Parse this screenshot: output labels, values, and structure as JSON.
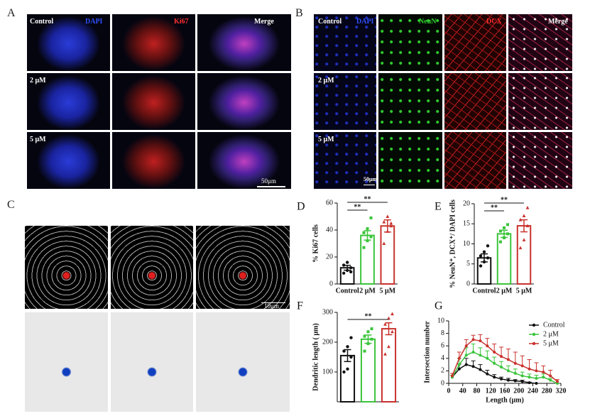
{
  "panel_labels": [
    "A",
    "B",
    "C"
  ],
  "figure_a": {
    "headers": [
      "Control",
      "DAPI",
      "Ki67",
      "Merge"
    ],
    "rows": [
      "2 μM",
      "5 μM"
    ],
    "scale_bar": "50μm"
  },
  "figure_b": {
    "headers": [
      "Control",
      "DAPI",
      "NeuN",
      "DCX",
      "Merge"
    ],
    "rows": [
      "2 μM",
      "5 μM"
    ],
    "scale_bar": "50μm"
  },
  "figure_c": {
    "scale_bar": "10μm"
  },
  "chart_data": [
    {
      "type": "bar",
      "panel": "D",
      "ylabel": "% Ki67 cells",
      "categories": [
        "Control",
        "2 μM",
        "5 μM"
      ],
      "values": [
        12,
        36,
        43
      ],
      "errors": [
        1.8,
        3.5,
        4.5
      ],
      "points": [
        [
          8,
          10,
          12,
          14,
          16,
          9
        ],
        [
          27,
          32,
          35,
          38,
          41,
          49
        ],
        [
          30,
          39,
          43,
          46,
          50,
          45
        ]
      ],
      "colors": [
        "#111111",
        "#3ac43a",
        "#c8322d"
      ],
      "ylim": [
        0,
        60
      ],
      "yticks": [
        0,
        20,
        40,
        60
      ],
      "significance": [
        "**",
        "**"
      ]
    },
    {
      "type": "bar",
      "panel": "E",
      "ylabel": "% NeuN⁺, DCX⁺/ DAPI cells",
      "categories": [
        "Control",
        "2 μM",
        "5 μM"
      ],
      "values": [
        6.5,
        12.5,
        14.5
      ],
      "errors": [
        1,
        0.9,
        1.5
      ],
      "points": [
        [
          4.5,
          5.5,
          6.5,
          7,
          8,
          9.5
        ],
        [
          10.5,
          11.5,
          12.5,
          13.2,
          14,
          14.8
        ],
        [
          9,
          11,
          14.5,
          16,
          17,
          19
        ]
      ],
      "colors": [
        "#111111",
        "#3ac43a",
        "#c8322d"
      ],
      "ylim": [
        0,
        20
      ],
      "yticks": [
        0,
        5,
        10,
        15,
        20
      ],
      "significance": [
        "**",
        "**"
      ]
    },
    {
      "type": "bar",
      "panel": "F",
      "ylabel": "Dendritic length ( μm)",
      "values": [
        155,
        210,
        245
      ],
      "errors": [
        20,
        14,
        20
      ],
      "points": [
        [
          100,
          110,
          150,
          170,
          185,
          215
        ],
        [
          170,
          195,
          210,
          220,
          235,
          245
        ],
        [
          160,
          185,
          235,
          260,
          280,
          295
        ]
      ],
      "colors": [
        "#111111",
        "#3ac43a",
        "#c8322d"
      ],
      "ylim": [
        0,
        300
      ],
      "yticks": [
        100,
        200,
        300
      ],
      "significance": [
        "**"
      ]
    },
    {
      "type": "line",
      "panel": "G",
      "ylabel": "Intersection number",
      "xlabel": "Length (μm)",
      "x": [
        10,
        30,
        50,
        70,
        90,
        110,
        130,
        150,
        170,
        190,
        210,
        230,
        250,
        270,
        290,
        310
      ],
      "series": [
        {
          "name": "Control",
          "color": "#111111",
          "values": [
            1,
            2.3,
            3,
            2.7,
            2.2,
            1.5,
            1,
            0.7,
            0.5,
            0.4,
            0.3,
            0.1,
            0,
            null,
            null,
            null
          ],
          "errors": [
            0.3,
            0.8,
            1,
            0.9,
            0.8,
            0.6,
            0.4,
            0.3,
            0.3,
            0.2,
            0.2,
            0.1,
            0,
            null,
            null,
            null
          ]
        },
        {
          "name": "2 μM",
          "color": "#3ac43a",
          "values": [
            1,
            3,
            4.5,
            5,
            4.5,
            4,
            3.2,
            2.6,
            2,
            1.6,
            1.2,
            1,
            0.8,
            1,
            0.5,
            0
          ],
          "errors": [
            0.3,
            1,
            1.2,
            1.3,
            1.2,
            1.2,
            1,
            0.9,
            0.8,
            0.7,
            0.6,
            0.5,
            0.5,
            0.5,
            0.3,
            0
          ]
        },
        {
          "name": "5 μM",
          "color": "#c8322d",
          "values": [
            1.2,
            4,
            6,
            7,
            6.8,
            6,
            5,
            4.3,
            3.8,
            3.2,
            2.8,
            2.3,
            2,
            1.8,
            1.2,
            0.3
          ],
          "errors": [
            0.4,
            1,
            1,
            0.7,
            1,
            1.2,
            1.3,
            1.5,
            1.7,
            1.8,
            1.6,
            1.5,
            1.3,
            1,
            0.9,
            0.3
          ]
        }
      ],
      "xlim": [
        0,
        320
      ],
      "xticks": [
        0,
        40,
        80,
        120,
        160,
        200,
        240,
        280,
        320
      ],
      "ylim": [
        0,
        10
      ],
      "yticks": [
        0,
        2,
        4,
        6,
        8,
        10
      ],
      "legend": "upper right"
    }
  ]
}
